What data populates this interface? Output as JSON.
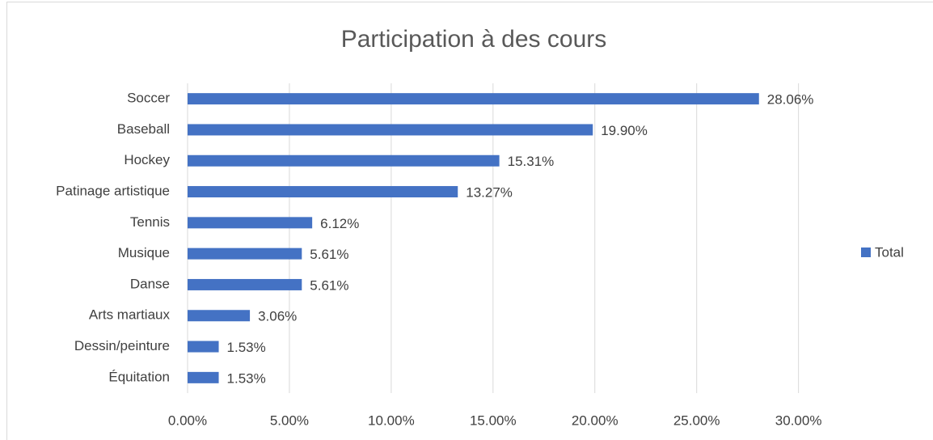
{
  "chart_data": {
    "type": "bar",
    "orientation": "horizontal",
    "title": "Participation à des cours",
    "categories": [
      "Soccer",
      "Baseball",
      "Hockey",
      "Patinage artistique",
      "Tennis",
      "Musique",
      "Danse",
      "Arts martiaux",
      "Dessin/peinture",
      "Équitation"
    ],
    "series": [
      {
        "name": "Total",
        "color": "#4472c4",
        "values": [
          28.06,
          19.9,
          15.31,
          13.27,
          6.12,
          5.61,
          5.61,
          3.06,
          1.53,
          1.53
        ],
        "value_labels": [
          "28.06%",
          "19.90%",
          "15.31%",
          "13.27%",
          "6.12%",
          "5.61%",
          "5.61%",
          "3.06%",
          "1.53%",
          "1.53%"
        ]
      }
    ],
    "xlim": [
      0,
      32
    ],
    "xticks": [
      {
        "value": 0,
        "label": "0.00%"
      },
      {
        "value": 5,
        "label": "5.00%"
      },
      {
        "value": 10,
        "label": "10.00%"
      },
      {
        "value": 15,
        "label": "15.00%"
      },
      {
        "value": 20,
        "label": "20.00%"
      },
      {
        "value": 25,
        "label": "25.00%"
      },
      {
        "value": 30,
        "label": "30.00%"
      }
    ],
    "grid": true,
    "legend": "right"
  }
}
